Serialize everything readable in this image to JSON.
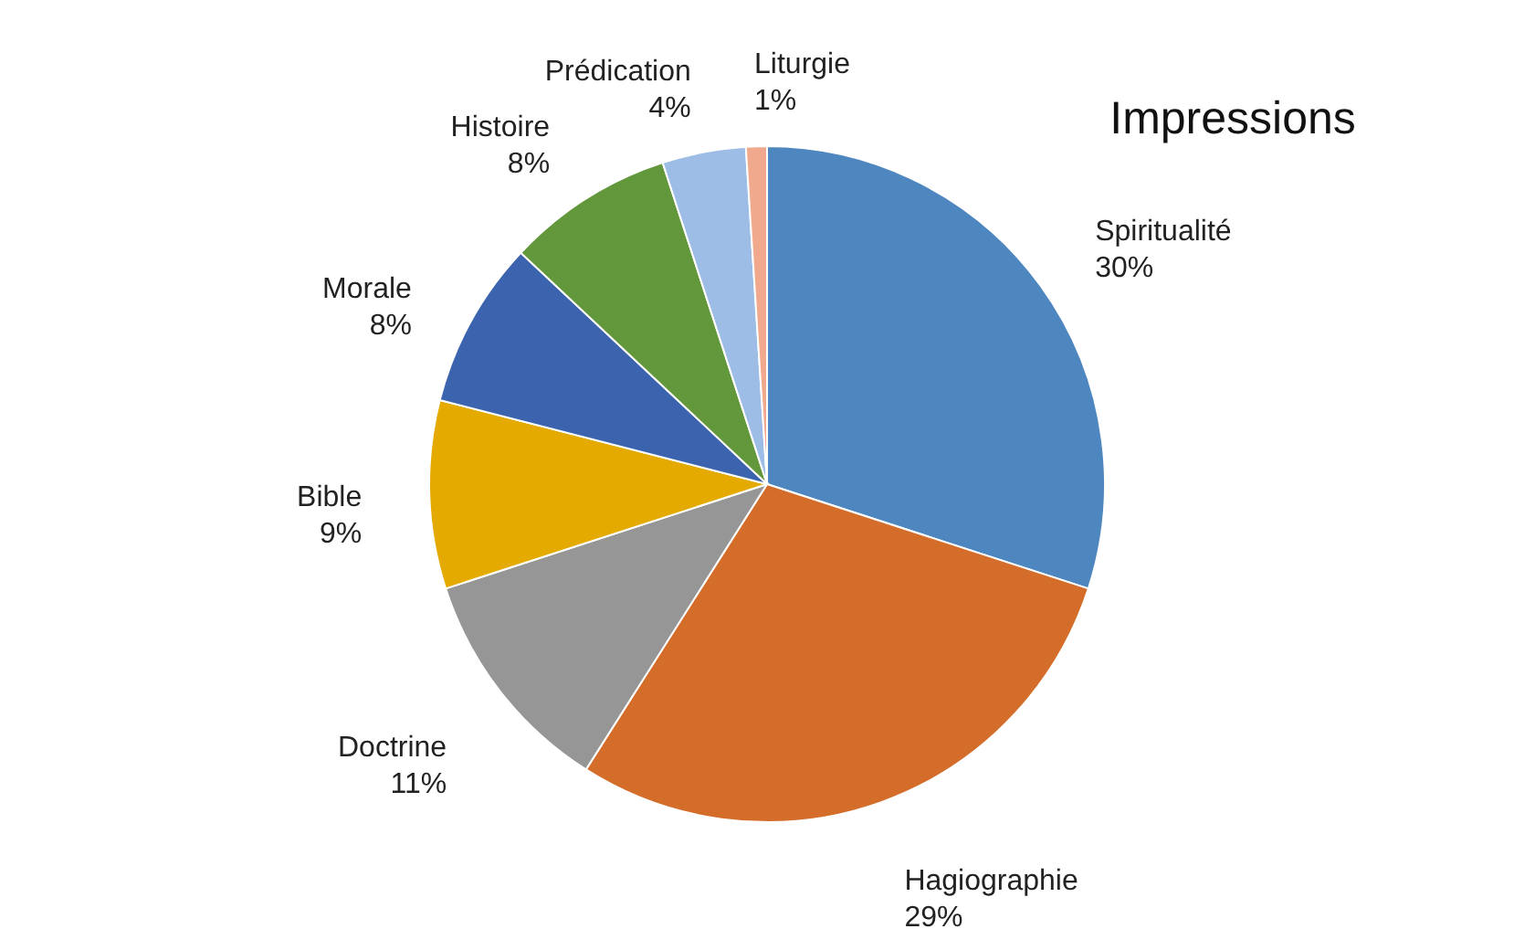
{
  "chart_data": {
    "type": "pie",
    "title": "Impressions",
    "categories": [
      "Spiritualité",
      "Hagiographie",
      "Doctrine",
      "Bible",
      "Morale",
      "Histoire",
      "Prédication",
      "Liturgie"
    ],
    "values": [
      30,
      29,
      11,
      9,
      8,
      8,
      4,
      1
    ],
    "value_labels": [
      "30%",
      "29%",
      "11%",
      "9%",
      "8%",
      "8%",
      "4%",
      "1%"
    ],
    "colors": [
      "#4e87bf",
      "#d46d2a",
      "#969696",
      "#e5aa00",
      "#3c64ae",
      "#62983b",
      "#9dbde6",
      "#f0a98c"
    ]
  }
}
